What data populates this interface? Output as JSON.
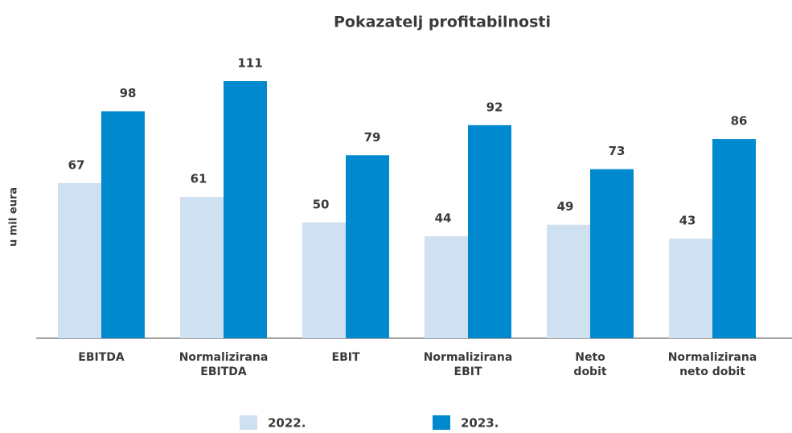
{
  "chart_data": {
    "type": "bar",
    "title": "Pokazatelj profitabilnosti",
    "y_label": "u mil eura",
    "categories": [
      [
        "EBITDA"
      ],
      [
        "Normalizirana",
        "EBITDA"
      ],
      [
        "EBIT"
      ],
      [
        "Normalizirana",
        "EBIT"
      ],
      [
        "Neto",
        "dobit"
      ],
      [
        "Normalizirana",
        "neto dobit"
      ]
    ],
    "series": [
      {
        "name": "2022.",
        "color": "#cfe0f1",
        "values": [
          67,
          61,
          50,
          44,
          49,
          43
        ]
      },
      {
        "name": "2023.",
        "color": "#0089cf",
        "values": [
          98,
          111,
          79,
          92,
          73,
          86
        ]
      }
    ]
  }
}
